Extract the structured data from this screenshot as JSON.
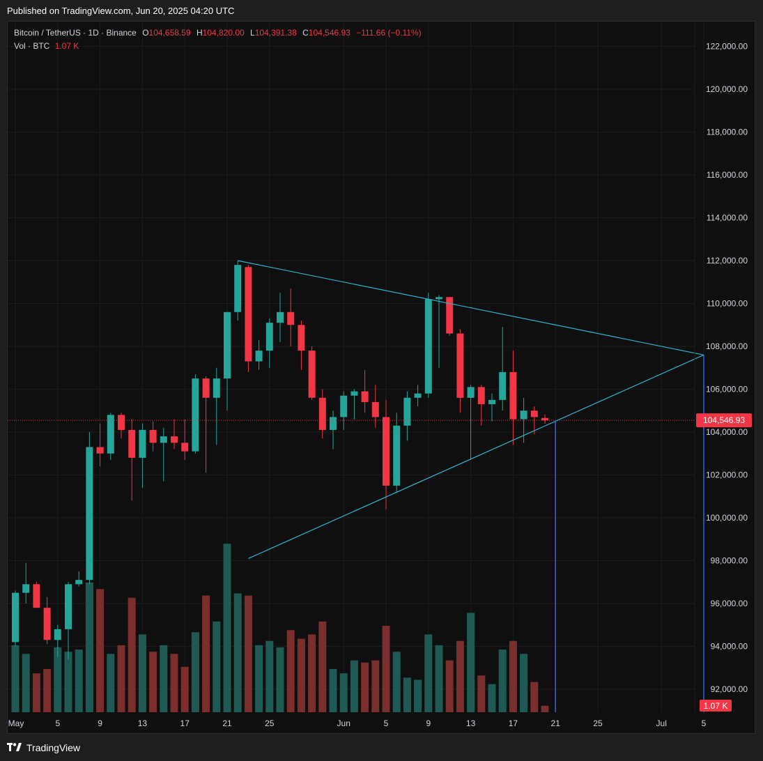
{
  "header": {
    "published": "Published on TradingView.com, Jun 20, 2025 04:20 UTC"
  },
  "legend": {
    "symbol": "Bitcoin / TetherUS · 1D · Binance",
    "o_label": "O",
    "o_value": "104,658.59",
    "h_label": "H",
    "h_value": "104,820.00",
    "l_label": "L",
    "l_value": "104,391.38",
    "c_label": "C",
    "c_value": "104,546.93",
    "change": "−111.66 (−0.11%)",
    "vol_label": "Vol · BTC",
    "vol_value": "1.07 K"
  },
  "footer": {
    "brand": "TradingView"
  },
  "colors": {
    "up": "#26a69a",
    "down": "#f23645",
    "up_vol": "#1f5a55",
    "down_vol": "#7a2e2e",
    "trendline": "#2bb5d1",
    "vline": "#2962ff",
    "grid": "#1c1c1c",
    "price_line": "#f23645"
  },
  "chart_data": {
    "type": "candlestick",
    "y_ticks": [
      "122,000.00",
      "120,000.00",
      "118,000.00",
      "116,000.00",
      "114,000.00",
      "112,000.00",
      "110,000.00",
      "108,000.00",
      "106,000.00",
      "104,000.00",
      "102,000.00",
      "100,000.00",
      "98,000.00",
      "96,000.00",
      "94,000.00",
      "92,000.00"
    ],
    "x_ticks": [
      {
        "label": "May",
        "day": 0
      },
      {
        "label": "5",
        "day": 4
      },
      {
        "label": "9",
        "day": 8
      },
      {
        "label": "13",
        "day": 12
      },
      {
        "label": "17",
        "day": 16
      },
      {
        "label": "21",
        "day": 20
      },
      {
        "label": "25",
        "day": 24
      },
      {
        "label": "Jun",
        "day": 31
      },
      {
        "label": "5",
        "day": 35
      },
      {
        "label": "9",
        "day": 39
      },
      {
        "label": "13",
        "day": 43
      },
      {
        "label": "17",
        "day": 47
      },
      {
        "label": "21",
        "day": 51
      },
      {
        "label": "25",
        "day": 55
      },
      {
        "label": "Jul",
        "day": 61
      },
      {
        "label": "5",
        "day": 65
      }
    ],
    "ylim": [
      90500,
      123000
    ],
    "last_price": 104546.93,
    "last_price_label": "104,546.93",
    "last_volume_label": "1.07 K",
    "candles": [
      {
        "o": 94200,
        "h": 96600,
        "l": 94000,
        "c": 96500,
        "v": 31
      },
      {
        "o": 96500,
        "h": 97900,
        "l": 96000,
        "c": 96900,
        "v": 27
      },
      {
        "o": 96900,
        "h": 97000,
        "l": 95800,
        "c": 95800,
        "v": 18
      },
      {
        "o": 95800,
        "h": 96300,
        "l": 94100,
        "c": 94300,
        "v": 20
      },
      {
        "o": 94300,
        "h": 95000,
        "l": 93500,
        "c": 94800,
        "v": 30
      },
      {
        "o": 94800,
        "h": 97000,
        "l": 93400,
        "c": 96900,
        "v": 28
      },
      {
        "o": 96900,
        "h": 97500,
        "l": 96800,
        "c": 97100,
        "v": 29
      },
      {
        "o": 97100,
        "h": 104000,
        "l": 96900,
        "c": 103300,
        "v": 60
      },
      {
        "o": 103300,
        "h": 104400,
        "l": 102400,
        "c": 103000,
        "v": 57
      },
      {
        "o": 103000,
        "h": 104900,
        "l": 102700,
        "c": 104800,
        "v": 27
      },
      {
        "o": 104800,
        "h": 104900,
        "l": 103700,
        "c": 104100,
        "v": 31
      },
      {
        "o": 104100,
        "h": 104600,
        "l": 100800,
        "c": 102800,
        "v": 53
      },
      {
        "o": 102800,
        "h": 104400,
        "l": 101400,
        "c": 104100,
        "v": 36
      },
      {
        "o": 104100,
        "h": 104500,
        "l": 103100,
        "c": 103500,
        "v": 28
      },
      {
        "o": 103500,
        "h": 104200,
        "l": 101700,
        "c": 103800,
        "v": 31
      },
      {
        "o": 103800,
        "h": 104600,
        "l": 103200,
        "c": 103500,
        "v": 27
      },
      {
        "o": 103500,
        "h": 104600,
        "l": 102700,
        "c": 103100,
        "v": 21
      },
      {
        "o": 103100,
        "h": 106700,
        "l": 103000,
        "c": 106500,
        "v": 37
      },
      {
        "o": 106500,
        "h": 106600,
        "l": 102100,
        "c": 105600,
        "v": 54
      },
      {
        "o": 105600,
        "h": 107000,
        "l": 103400,
        "c": 106500,
        "v": 42
      },
      {
        "o": 106500,
        "h": 109600,
        "l": 105000,
        "c": 109600,
        "v": 78
      },
      {
        "o": 109600,
        "h": 112000,
        "l": 109200,
        "c": 111800,
        "v": 55
      },
      {
        "o": 111700,
        "h": 111800,
        "l": 106800,
        "c": 107300,
        "v": 54
      },
      {
        "o": 107300,
        "h": 108300,
        "l": 106900,
        "c": 107800,
        "v": 31
      },
      {
        "o": 107800,
        "h": 109300,
        "l": 107000,
        "c": 109100,
        "v": 33
      },
      {
        "o": 109100,
        "h": 110500,
        "l": 108200,
        "c": 109600,
        "v": 30
      },
      {
        "o": 109600,
        "h": 110700,
        "l": 108000,
        "c": 109000,
        "v": 38
      },
      {
        "o": 109000,
        "h": 109200,
        "l": 106900,
        "c": 107800,
        "v": 34
      },
      {
        "o": 107800,
        "h": 108000,
        "l": 105500,
        "c": 105600,
        "v": 36
      },
      {
        "o": 105600,
        "h": 106000,
        "l": 103700,
        "c": 104100,
        "v": 42
      },
      {
        "o": 104100,
        "h": 105000,
        "l": 103200,
        "c": 104700,
        "v": 20
      },
      {
        "o": 104700,
        "h": 105900,
        "l": 104100,
        "c": 105700,
        "v": 18
      },
      {
        "o": 105700,
        "h": 106000,
        "l": 104600,
        "c": 105900,
        "v": 24
      },
      {
        "o": 105900,
        "h": 106900,
        "l": 104900,
        "c": 105400,
        "v": 23
      },
      {
        "o": 105400,
        "h": 106200,
        "l": 104200,
        "c": 104700,
        "v": 24
      },
      {
        "o": 104700,
        "h": 105500,
        "l": 100400,
        "c": 101500,
        "v": 40
      },
      {
        "o": 101500,
        "h": 104900,
        "l": 101200,
        "c": 104300,
        "v": 28
      },
      {
        "o": 104300,
        "h": 105900,
        "l": 103600,
        "c": 105600,
        "v": 16
      },
      {
        "o": 105600,
        "h": 106200,
        "l": 105200,
        "c": 105800,
        "v": 15
      },
      {
        "o": 105800,
        "h": 110500,
        "l": 105600,
        "c": 110200,
        "v": 36
      },
      {
        "o": 110200,
        "h": 110400,
        "l": 107000,
        "c": 110300,
        "v": 31
      },
      {
        "o": 110300,
        "h": 110300,
        "l": 108500,
        "c": 108600,
        "v": 24
      },
      {
        "o": 108600,
        "h": 108800,
        "l": 104900,
        "c": 105600,
        "v": 33
      },
      {
        "o": 105600,
        "h": 106200,
        "l": 102700,
        "c": 106100,
        "v": 46
      },
      {
        "o": 106100,
        "h": 106200,
        "l": 104300,
        "c": 105300,
        "v": 17
      },
      {
        "o": 105300,
        "h": 105800,
        "l": 104500,
        "c": 105500,
        "v": 13
      },
      {
        "o": 105500,
        "h": 108900,
        "l": 105000,
        "c": 106800,
        "v": 29
      },
      {
        "o": 106800,
        "h": 107800,
        "l": 103400,
        "c": 104600,
        "v": 33
      },
      {
        "o": 104600,
        "h": 105600,
        "l": 103500,
        "c": 105000,
        "v": 27
      },
      {
        "o": 105000,
        "h": 105200,
        "l": 103900,
        "c": 104700,
        "v": 14
      },
      {
        "o": 104658.59,
        "h": 104820,
        "l": 104391.38,
        "c": 104546.93,
        "v": 3
      }
    ],
    "trendlines": [
      {
        "from": {
          "day": 21,
          "price": 112000
        },
        "to": {
          "day": 65,
          "price": 107600
        }
      },
      {
        "from": {
          "day": 22,
          "price": 98100
        },
        "to": {
          "day": 65,
          "price": 107600
        }
      }
    ],
    "vertical_lines": [
      {
        "day": 51,
        "top_price": 104550
      },
      {
        "day": 65,
        "top_price": 107600
      }
    ]
  }
}
